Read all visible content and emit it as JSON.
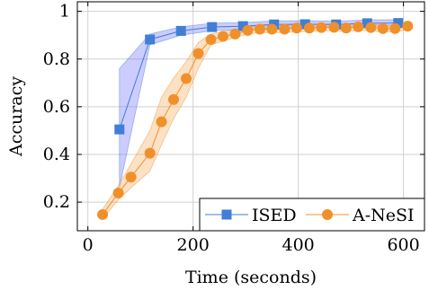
{
  "chart_data": {
    "type": "line",
    "title": "",
    "xlabel": "Time (seconds)",
    "ylabel": "Accuracy",
    "xlim": [
      -20,
      640
    ],
    "ylim": [
      0.08,
      1.04
    ],
    "x_ticks": [
      0,
      200,
      400,
      600
    ],
    "y_ticks": [
      0.2,
      0.4,
      0.6,
      0.8,
      1
    ],
    "x_tick_labels": [
      "0",
      "200",
      "400",
      "600"
    ],
    "y_tick_labels": [
      "0.2",
      "0.4",
      "0.6",
      "0.8",
      "1"
    ],
    "grid": true,
    "legend_position": "bottom-right",
    "series": [
      {
        "name": "ISED",
        "color": "#3f7fd6",
        "band_color": "#7f7fff",
        "marker": "square",
        "x": [
          60,
          118,
          177,
          236,
          295,
          354,
          413,
          472,
          531,
          590
        ],
        "y": [
          0.505,
          0.882,
          0.918,
          0.934,
          0.938,
          0.945,
          0.946,
          0.945,
          0.95,
          0.951
        ],
        "lower": [
          0.26,
          0.86,
          0.9,
          0.918,
          0.925,
          0.93,
          0.932,
          0.932,
          0.936,
          0.937
        ],
        "upper": [
          0.76,
          0.905,
          0.935,
          0.95,
          0.953,
          0.96,
          0.961,
          0.959,
          0.964,
          0.965
        ]
      },
      {
        "name": "A-NeSI",
        "color": "#f0902b",
        "band_color": "#f7b36b",
        "marker": "circle",
        "x": [
          28,
          58,
          82,
          118,
          140,
          163,
          187,
          210,
          234,
          257,
          280,
          304,
          327,
          350,
          374,
          397,
          421,
          444,
          468,
          491,
          514,
          538,
          561,
          584,
          608
        ],
        "y": [
          0.148,
          0.238,
          0.305,
          0.405,
          0.537,
          0.63,
          0.718,
          0.823,
          0.882,
          0.895,
          0.905,
          0.92,
          0.925,
          0.925,
          0.925,
          0.93,
          0.93,
          0.932,
          0.933,
          0.93,
          0.935,
          0.932,
          0.928,
          0.928,
          0.938
        ],
        "lower": [
          0.13,
          0.21,
          0.26,
          0.33,
          0.44,
          0.55,
          0.64,
          0.76,
          0.86,
          0.875,
          0.89,
          0.905,
          0.91,
          0.91,
          0.91,
          0.915,
          0.915,
          0.918,
          0.918,
          0.915,
          0.92,
          0.918,
          0.913,
          0.913,
          0.924
        ],
        "upper": [
          0.17,
          0.27,
          0.36,
          0.5,
          0.64,
          0.72,
          0.79,
          0.87,
          0.905,
          0.915,
          0.922,
          0.935,
          0.94,
          0.94,
          0.94,
          0.945,
          0.945,
          0.946,
          0.947,
          0.945,
          0.95,
          0.946,
          0.943,
          0.943,
          0.952
        ]
      }
    ]
  }
}
